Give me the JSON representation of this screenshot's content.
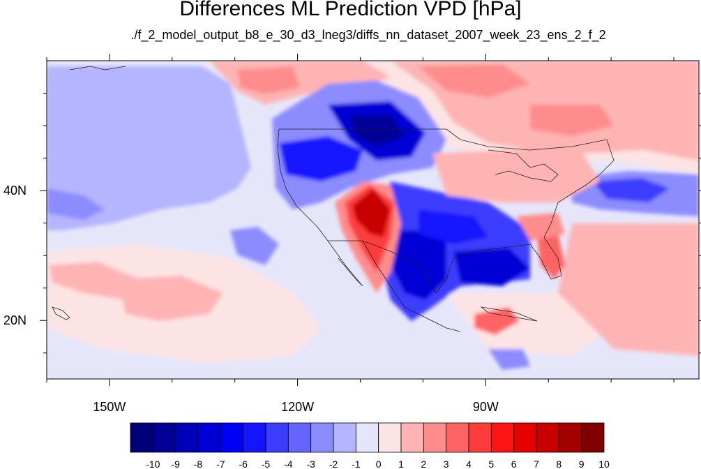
{
  "chart_data": {
    "type": "heatmap",
    "title": "Differences ML Prediction VPD [hPa]",
    "subtitle": "./f_2_model_output_b8_e_30_d3_lneg3/diffs_nn_dataset_2007_week_23_ens_2_f_2",
    "x_ticks": [
      {
        "lon": -150,
        "label": "150W"
      },
      {
        "lon": -120,
        "label": "120W"
      },
      {
        "lon": -90,
        "label": "90W"
      }
    ],
    "y_ticks": [
      {
        "lat": 40,
        "label": "40N"
      },
      {
        "lat": 20,
        "label": "20N"
      }
    ],
    "xlim": [
      -160,
      -56
    ],
    "ylim": [
      11,
      60
    ],
    "colorbar": {
      "labels": [
        "-10",
        "-9",
        "-8",
        "-7",
        "-6",
        "-5",
        "-4",
        "-3",
        "-2",
        "-1",
        "0",
        "1",
        "2",
        "3",
        "4",
        "5",
        "6",
        "7",
        "8",
        "9",
        "10"
      ],
      "colors": [
        "#00007b",
        "#000098",
        "#0000b8",
        "#0000d6",
        "#0000f4",
        "#1414ff",
        "#3c3cff",
        "#6464ff",
        "#8c8cff",
        "#b4b4ff",
        "#e6e6fa",
        "#fde4e4",
        "#ffb4b4",
        "#ff8c8c",
        "#ff6464",
        "#ff3c3c",
        "#ff1414",
        "#e60000",
        "#c80000",
        "#a50000",
        "#800000"
      ]
    }
  }
}
